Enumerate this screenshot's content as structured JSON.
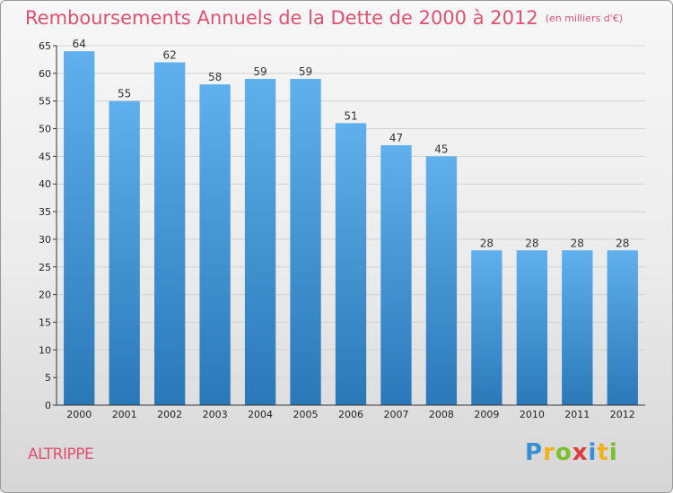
{
  "title": "Remboursements Annuels de la Dette de 2000 à 2012",
  "unit": "(en milliers d'€)",
  "place": "ALTRIPPE",
  "logo": {
    "letters": [
      "P",
      "r",
      "o",
      "x",
      "i",
      "t",
      "i"
    ],
    "colors": [
      "#3a8fd3",
      "#f2b01e",
      "#7bbf2a",
      "#e03a3a",
      "#3a8fd3",
      "#f2b01e",
      "#7bbf2a"
    ]
  },
  "colors": {
    "bar_top": "#5fb0ec",
    "bar_bottom": "#2a78b8",
    "title": "#e0506f"
  },
  "chart_data": {
    "type": "bar",
    "categories": [
      "2000",
      "2001",
      "2002",
      "2003",
      "2004",
      "2005",
      "2006",
      "2007",
      "2008",
      "2009",
      "2010",
      "2011",
      "2012"
    ],
    "values": [
      64,
      55,
      62,
      58,
      59,
      59,
      51,
      47,
      45,
      28,
      28,
      28,
      28
    ],
    "ylim": [
      0,
      65
    ],
    "yticks": [
      0,
      5,
      10,
      15,
      20,
      25,
      30,
      35,
      40,
      45,
      50,
      55,
      60,
      65
    ],
    "grid": true,
    "data_labels": true
  }
}
